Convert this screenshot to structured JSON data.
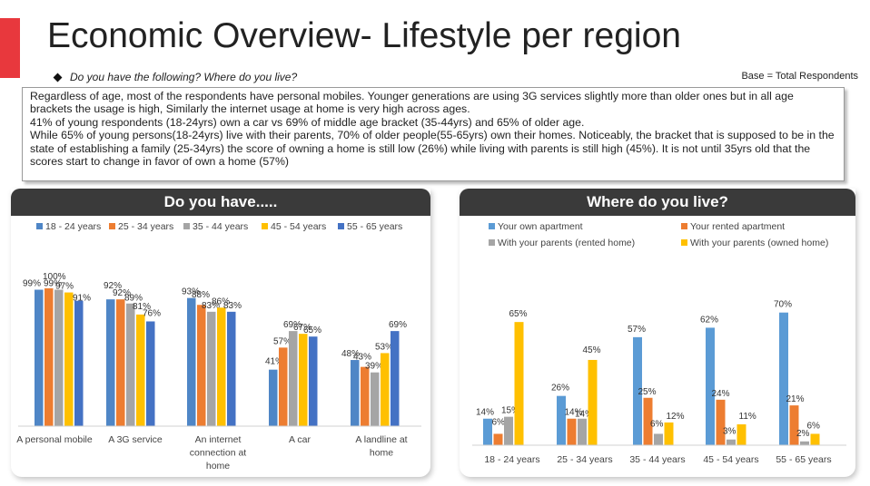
{
  "title": "Economic Overview- Lifestyle per region",
  "question": "Do you have the following? Where do you live?",
  "base": "Base = Total Respondents",
  "summary": [
    "Regardless of age, most of the respondents have personal mobiles. Younger generations are using 3G services slightly more than older ones but in all age brackets the usage is high, Similarly the internet usage at home is very high across ages.",
    "41% of young respondents (18-24yrs) own a car vs 69% of middle age bracket (35-44yrs) and 65% of older age.",
    "While 65% of young persons(18-24yrs) live with their parents, 70% of older people(55-65yrs) own their homes. Noticeably, the bracket that is supposed to be in the state of establishing a family (25-34yrs) the score of owning a home is still low (26%) while living with parents is still high (45%). It is not until 35yrs old that the scores start to change in favor of own a home (57%)"
  ],
  "chart_data": [
    {
      "type": "bar",
      "title": "Do you have.....",
      "legend_position": "top",
      "categories": [
        "A personal mobile",
        "A 3G service",
        "An internet connection at home",
        "A car",
        "A landline at home"
      ],
      "ylim": [
        0,
        110
      ],
      "grid": false,
      "series": [
        {
          "name": "18 - 24 years",
          "color": "#4f86c6",
          "values": [
            99,
            92,
            93,
            41,
            48
          ]
        },
        {
          "name": "25 - 34 years",
          "color": "#ed7d31",
          "values": [
            100,
            92,
            88,
            57,
            43
          ]
        },
        {
          "name": "35 - 44 years",
          "color": "#a5a5a5",
          "values": [
            99,
            89,
            83,
            69,
            39
          ]
        },
        {
          "name": "45 - 54 years",
          "color": "#ffc000",
          "values": [
            97,
            81,
            86,
            67,
            53
          ]
        },
        {
          "name": "55 - 65 years",
          "color": "#4472c4",
          "values": [
            91,
            76,
            83,
            65,
            69
          ]
        }
      ]
    },
    {
      "type": "bar",
      "title": "Where do you live?",
      "legend_position": "top",
      "categories": [
        "18 - 24 years",
        "25 - 34 years",
        "35 - 44 years",
        "45 - 54 years",
        "55 - 65 years"
      ],
      "ylim": [
        0,
        80
      ],
      "grid": false,
      "series": [
        {
          "name": "Your own apartment",
          "color": "#5b9bd5",
          "values": [
            14,
            26,
            57,
            62,
            70
          ]
        },
        {
          "name": "Your rented apartment",
          "color": "#ed7d31",
          "values": [
            6,
            14,
            25,
            24,
            21
          ]
        },
        {
          "name": "With your parents (rented home)",
          "color": "#a5a5a5",
          "values": [
            15,
            14,
            6,
            3,
            2
          ]
        },
        {
          "name": "With your parents (owned home)",
          "color": "#ffc000",
          "values": [
            65,
            45,
            12,
            11,
            6
          ]
        }
      ]
    }
  ]
}
